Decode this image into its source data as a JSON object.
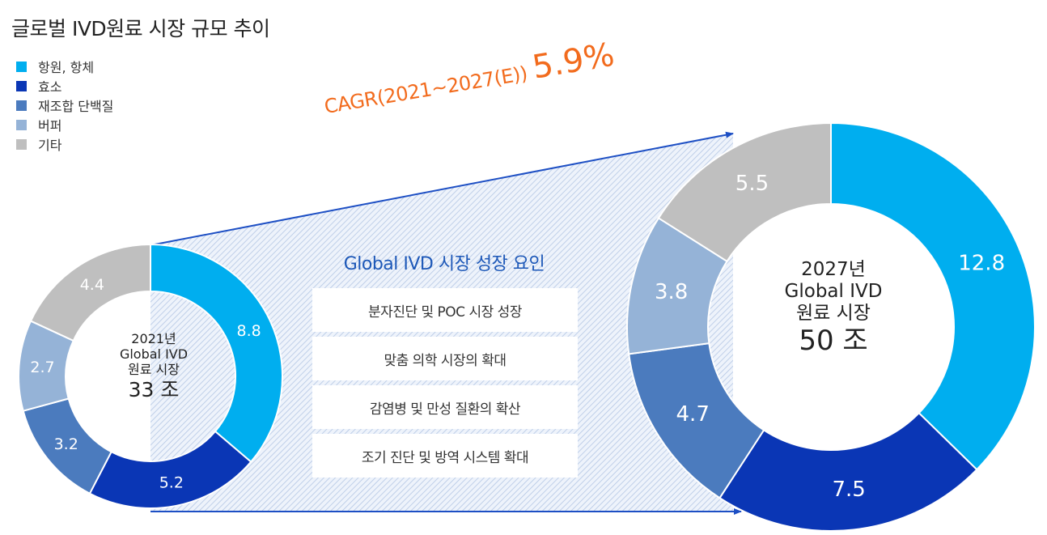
{
  "title": "글로벌 IVD원료 시장 규모 추이",
  "legend": [
    {
      "label": "항원, 항체",
      "color": "#00aeef"
    },
    {
      "label": "효소",
      "color": "#0a36b5"
    },
    {
      "label": "재조합 단백질",
      "color": "#4b7bbe"
    },
    {
      "label": "버퍼",
      "color": "#95b3d7"
    },
    {
      "label": "기타",
      "color": "#bfbfbf"
    }
  ],
  "cagr": {
    "label": "CAGR(2021~2027(E))",
    "value": "5.9%"
  },
  "growth_factors": {
    "title": "Global IVD 시장 성장 요인",
    "items": [
      "분자진단 및 POC 시장 성장",
      "맞춤 의학 시장의 확대",
      "감염병 및 만성 질환의 확산",
      "조기 진단 및 방역 시스템 확대"
    ]
  },
  "chart_data": [
    {
      "type": "pie",
      "center": {
        "year": "2021년",
        "name": "Global IVD",
        "market": "원료 시장",
        "total": "33 조"
      },
      "categories": [
        "항원, 항체",
        "효소",
        "재조합 단백질",
        "버퍼",
        "기타"
      ],
      "values": [
        8.8,
        5.2,
        3.2,
        2.7,
        4.4
      ],
      "labels": [
        "8.8",
        "5.2",
        "3.2",
        "2.7",
        "4.4"
      ]
    },
    {
      "type": "pie",
      "center": {
        "year": "2027년",
        "name": "Global IVD",
        "market": "원료 시장",
        "total": "50 조"
      },
      "categories": [
        "항원, 항체",
        "효소",
        "재조합 단백질",
        "버퍼",
        "기타"
      ],
      "values": [
        12.8,
        7.5,
        4.7,
        3.8,
        5.5
      ],
      "labels": [
        "12.8",
        "7.5",
        "4.7",
        "3.8",
        "5.5"
      ]
    }
  ]
}
